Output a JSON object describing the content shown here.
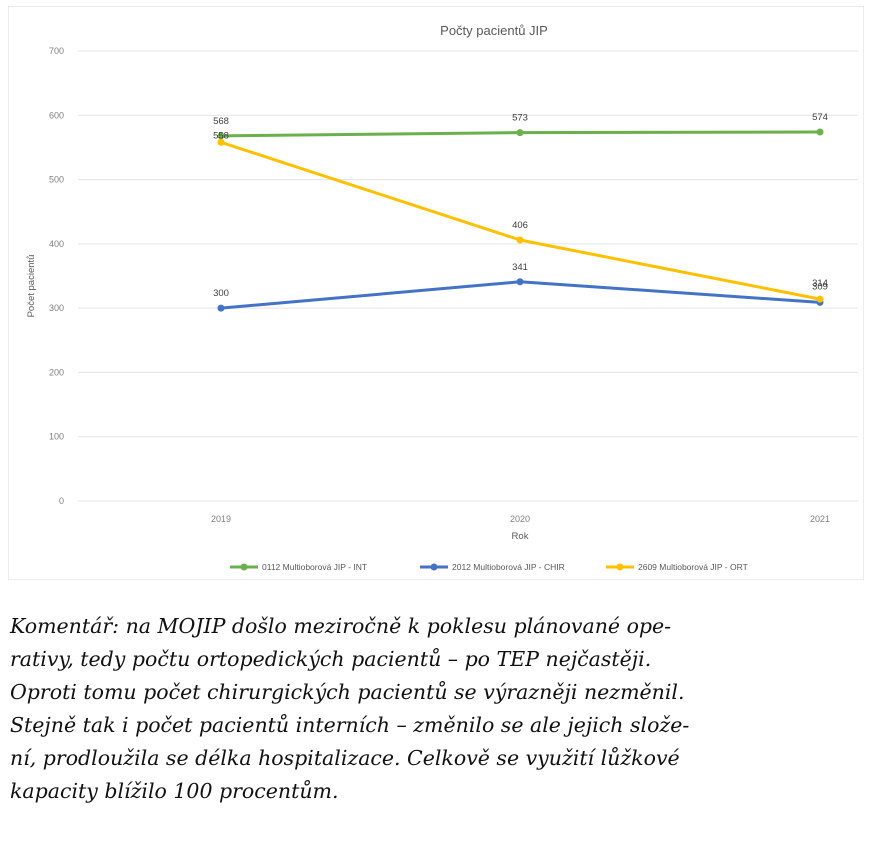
{
  "chart_data": {
    "type": "line",
    "title": "Počty pacientů JIP",
    "xlabel": "Rok",
    "ylabel": "Počet pacientů",
    "categories": [
      "2019",
      "2020",
      "2021"
    ],
    "ylim": [
      0,
      700
    ],
    "yticks": [
      "0",
      "100",
      "200",
      "300",
      "400",
      "500",
      "600",
      "700"
    ],
    "grid": true,
    "legend_position": "bottom",
    "series": [
      {
        "name": "0112 Multioborová JIP - INT",
        "color": "#6ab04c",
        "values": [
          568,
          573,
          574
        ],
        "labels": [
          "568",
          "573",
          "574"
        ]
      },
      {
        "name": "2012 Multioborová JIP - CHIR",
        "color": "#4472c4",
        "values": [
          300,
          341,
          309
        ],
        "labels": [
          "300",
          "341",
          "309"
        ]
      },
      {
        "name": "2609 Multioborová JIP - ORT",
        "color": "#ffc000",
        "values": [
          558,
          406,
          314
        ],
        "labels": [
          "558",
          "406",
          "314"
        ]
      }
    ]
  },
  "comment": {
    "lines": [
      "Komentář: na MOJIP došlo meziročně k poklesu plánované ope-",
      "rativy, tedy počtu ortopedických pacientů – po TEP nejčastěji.",
      "Oproti tomu počet chirurgických pacientů se výrazněji nezměnil.",
      "Stejně tak i počet pacientů interních – změnilo se ale jejich slože-",
      "ní, prodloužila se délka hospitalizace. Celkově se využití lůžkové",
      "kapacity blížilo 100 procentům."
    ]
  }
}
